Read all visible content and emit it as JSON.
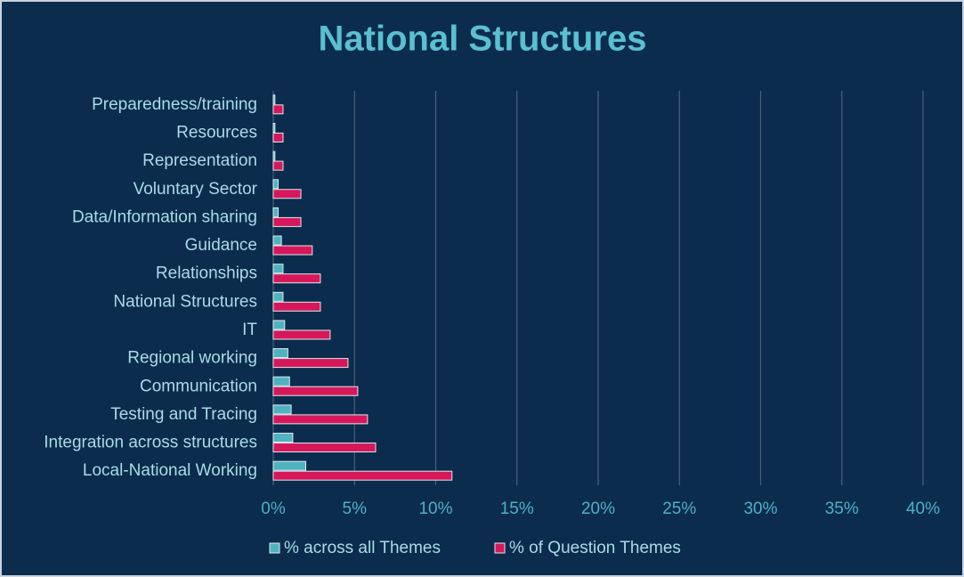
{
  "chart_data": {
    "type": "barh",
    "title": "National Structures",
    "categories": [
      "Preparedness/training",
      "Resources",
      "Representation",
      "Voluntary Sector",
      "Data/Information sharing",
      "Guidance",
      "Relationships",
      "National Structures",
      "IT",
      "Regional working",
      "Communication",
      "Testing and Tracing",
      "Integration across structures",
      "Local-National Working"
    ],
    "series": [
      {
        "name": "% across all Themes",
        "color": "#4fb3bf",
        "values": [
          0.1,
          0.1,
          0.1,
          0.3,
          0.3,
          0.5,
          0.6,
          0.6,
          0.7,
          0.9,
          1.0,
          1.1,
          1.2,
          2.0
        ]
      },
      {
        "name": "% of Question Themes",
        "color": "#d6185a",
        "values": [
          0.6,
          0.6,
          0.6,
          1.7,
          1.7,
          2.4,
          2.9,
          2.9,
          3.5,
          4.6,
          5.2,
          5.8,
          6.3,
          11.0
        ]
      }
    ],
    "xlim": [
      0,
      40
    ],
    "xticks": [
      {
        "value": 0,
        "label": "0%"
      },
      {
        "value": 5,
        "label": "5%"
      },
      {
        "value": 10,
        "label": "10%"
      },
      {
        "value": 15,
        "label": "15%"
      },
      {
        "value": 20,
        "label": "20%"
      },
      {
        "value": 25,
        "label": "25%"
      },
      {
        "value": 30,
        "label": "30%"
      },
      {
        "value": 35,
        "label": "35%"
      },
      {
        "value": 40,
        "label": "40%"
      }
    ],
    "grid": true,
    "legend": "bottom"
  }
}
